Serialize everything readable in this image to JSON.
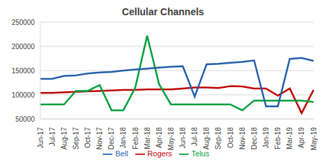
{
  "chart_data": {
    "type": "line",
    "title": "Cellular Channels",
    "categories": [
      "Jun-17",
      "Jul-17",
      "Aug-17",
      "Sep-17",
      "Oct-17",
      "Nov-17",
      "Dec-17",
      "Jan-18",
      "Feb-18",
      "Mar-18",
      "Apr-18",
      "May-18",
      "Jun-18",
      "Jul-18",
      "Aug-18",
      "Sep-18",
      "Oct-18",
      "Nov-18",
      "Dec-18",
      "Jan-19",
      "Feb-19",
      "Mar-19",
      "Apr-19",
      "May-19"
    ],
    "series": [
      {
        "name": "Rogers",
        "color": "#c00000",
        "values": [
          104000,
          104000,
          105000,
          106000,
          107000,
          108000,
          109000,
          110000,
          110000,
          111000,
          111000,
          111000,
          113000,
          115000,
          115000,
          114000,
          118000,
          117000,
          113000,
          113000,
          98000,
          113000,
          62000,
          110000
        ]
      },
      {
        "name": "Telus",
        "color": "#00a03c",
        "values": [
          80000,
          80000,
          80000,
          108000,
          108000,
          120000,
          68000,
          68000,
          115000,
          222000,
          122000,
          80000,
          80000,
          80000,
          80000,
          80000,
          80000,
          68000,
          88000,
          88000,
          88000,
          88000,
          88000,
          85000
        ]
      },
      {
        "name": "Bell",
        "color": "#1f5fa8",
        "values": [
          133000,
          133000,
          139000,
          140000,
          144000,
          146000,
          147000,
          150000,
          152000,
          154000,
          156000,
          158000,
          159000,
          96000,
          163000,
          164000,
          166000,
          168000,
          171000,
          76000,
          76000,
          174000,
          176000,
          170000
        ]
      }
    ],
    "ylim": [
      50000,
      250000
    ],
    "yticks": [
      50000,
      100000,
      150000,
      200000,
      250000
    ],
    "grid": true,
    "legend": "bottom"
  }
}
